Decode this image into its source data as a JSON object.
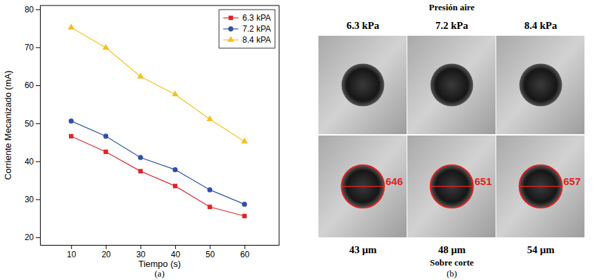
{
  "chart_data": {
    "type": "line",
    "x": [
      10,
      20,
      30,
      40,
      50,
      60
    ],
    "x_label": "Tiempo (s)",
    "y_label": "Corriente Mecanizado (mA)",
    "xlim": [
      1,
      70
    ],
    "xticks": [
      10,
      20,
      30,
      40,
      50,
      60
    ],
    "ylim": [
      18,
      81
    ],
    "yticks": [
      20,
      30,
      40,
      50,
      60,
      70,
      80
    ],
    "grid": false,
    "legend": "top-right",
    "series": [
      {
        "name": "6.3 kPA",
        "color": "#e3222b",
        "marker": "square",
        "values": [
          46.6,
          42.5,
          37.4,
          33.5,
          28.0,
          25.6
        ]
      },
      {
        "name": "7.2 kPA",
        "color": "#2f4fa8",
        "marker": "circle",
        "values": [
          50.6,
          46.6,
          41.0,
          37.8,
          32.5,
          28.7
        ]
      },
      {
        "name": "8.4 kPA",
        "color": "#f5c022",
        "marker": "triangle",
        "values": [
          75.2,
          69.9,
          62.3,
          57.6,
          51.1,
          45.2
        ]
      }
    ]
  },
  "panel_b": {
    "title": "Presión aire",
    "columns": [
      {
        "pressure": "6.3 kPa",
        "measurement": 646,
        "overcut": "43 μm"
      },
      {
        "pressure": "7.2 kPa",
        "measurement": 651,
        "overcut": "48 μm"
      },
      {
        "pressure": "8.4 kPa",
        "measurement": 657,
        "overcut": "54 μm"
      }
    ],
    "footer": "Sobre corte"
  },
  "panel_labels": [
    "(a)",
    "(b)"
  ]
}
